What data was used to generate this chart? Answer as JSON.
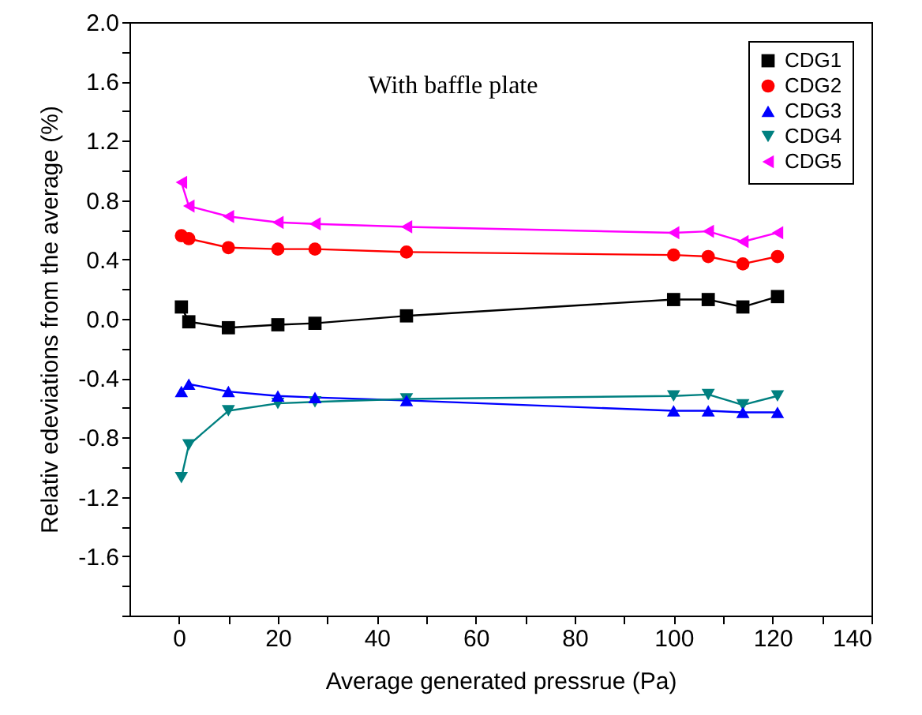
{
  "chart_data": {
    "type": "line",
    "xlabel": "Average generated pressrue (Pa)",
    "ylabel": "Relativ edeviations from the average (%)",
    "annotations": [
      "With baffle plate"
    ],
    "x": [
      0.5,
      2,
      10,
      20,
      27.5,
      46,
      100,
      107,
      114,
      121
    ],
    "xlim": [
      -10,
      140
    ],
    "xticks": [
      0,
      {
        "value": 10,
        "label": null
      },
      20,
      {
        "value": 30,
        "label": null
      },
      40,
      {
        "value": 50,
        "label": null
      },
      60,
      {
        "value": 70,
        "label": null
      },
      80,
      {
        "value": 90,
        "label": null
      },
      100,
      {
        "value": 110,
        "label": null
      },
      120,
      {
        "value": 130,
        "label": null
      },
      140
    ],
    "ylim": [
      -2,
      2
    ],
    "yticks": [
      {
        "value": -2,
        "label": null
      },
      {
        "value": -1.8,
        "label": null
      },
      "-1.6",
      {
        "value": -1.4,
        "label": null
      },
      "-1.2",
      {
        "value": -1,
        "label": null
      },
      "-0.8",
      {
        "value": -0.6,
        "label": null
      },
      "-0.4",
      {
        "value": -0.2,
        "label": null
      },
      {
        "value": 0,
        "label": "0.0"
      },
      {
        "value": 0.2,
        "label": null
      },
      0.4,
      {
        "value": 0.6,
        "label": null
      },
      0.8,
      {
        "value": 1,
        "label": null
      },
      1.2,
      {
        "value": 1.4,
        "label": null
      },
      1.6,
      {
        "value": 1.8,
        "label": null
      },
      {
        "value": 2,
        "label": "2.0"
      }
    ],
    "grid": false,
    "legend": "top right",
    "line_style": "solid",
    "series": [
      {
        "name": "CDG1",
        "color": "#000000",
        "marker": "square",
        "values": [
          0.08,
          -0.02,
          -0.06,
          -0.04,
          -0.03,
          0.02,
          0.13,
          0.13,
          0.08,
          0.15
        ]
      },
      {
        "name": "CDG2",
        "color": "#ff0000",
        "marker": "circle",
        "values": [
          0.56,
          0.54,
          0.48,
          0.47,
          0.47,
          0.45,
          0.43,
          0.42,
          0.37,
          0.42
        ]
      },
      {
        "name": "CDG3",
        "color": "#0000ff",
        "marker": "triangle-up",
        "values": [
          -0.49,
          -0.44,
          -0.49,
          -0.52,
          -0.53,
          -0.55,
          -0.62,
          -0.62,
          -0.63,
          -0.63
        ]
      },
      {
        "name": "CDG4",
        "color": "#008080",
        "marker": "triangle-down",
        "values": [
          -1.07,
          -0.85,
          -0.62,
          -0.57,
          -0.56,
          -0.54,
          -0.52,
          -0.51,
          -0.58,
          -0.52
        ]
      },
      {
        "name": "CDG5",
        "color": "#ff00ff",
        "marker": "triangle-left",
        "values": [
          0.92,
          0.76,
          0.69,
          0.65,
          0.64,
          0.62,
          0.58,
          0.59,
          0.52,
          0.58
        ]
      }
    ]
  }
}
